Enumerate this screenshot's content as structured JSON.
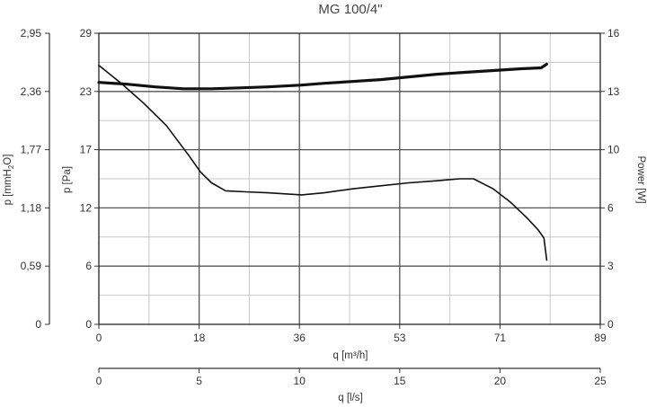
{
  "chart_data": {
    "type": "line",
    "title": "MG 100/4\"",
    "grid": true,
    "x_axis": {
      "label": "q [m³/h]",
      "range": [
        0,
        89
      ],
      "ticks": [
        "0",
        "18",
        "36",
        "53",
        "71",
        "89"
      ]
    },
    "x2_axis": {
      "label": "q [l/s]",
      "range": [
        0,
        25
      ],
      "ticks": [
        "0",
        "5",
        "10",
        "15",
        "20",
        "25"
      ]
    },
    "y_axis_pa": {
      "label": "p [Pa]",
      "range": [
        0,
        29
      ],
      "ticks": [
        "0",
        "6",
        "12",
        "17",
        "23",
        "29"
      ]
    },
    "y_axis_mmh2o": {
      "label_main": "p [mmH",
      "label_sub": "2",
      "label_end": "O]",
      "ticks": [
        "0",
        "0,59",
        "1,18",
        "1,77",
        "2,36",
        "2,95"
      ]
    },
    "y_axis_power": {
      "label": "Power [W]",
      "range": [
        0,
        16
      ],
      "ticks": [
        "0",
        "3",
        "6",
        "10",
        "13",
        "16"
      ]
    },
    "series": [
      {
        "color": "#111111",
        "axis": "power",
        "x": [
          0,
          5,
          10,
          15,
          20,
          25,
          30,
          36,
          40,
          45,
          50,
          55,
          60,
          65,
          70,
          75,
          78.5,
          79.5
        ],
        "y": [
          13.3,
          13.2,
          13.05,
          12.95,
          12.95,
          13.0,
          13.05,
          13.15,
          13.25,
          13.35,
          13.45,
          13.6,
          13.75,
          13.85,
          13.95,
          14.05,
          14.1,
          14.3
        ]
      },
      {
        "color": "#111111",
        "axis": "pa",
        "x": [
          0,
          4,
          8,
          12,
          16,
          18,
          20,
          22.5,
          26,
          30,
          36,
          40,
          45,
          50,
          55,
          60,
          64,
          66.5,
          70,
          73,
          76,
          78,
          79,
          79.5
        ],
        "y": [
          25.8,
          24.0,
          22.0,
          19.8,
          16.8,
          15.2,
          14.1,
          13.3,
          13.2,
          13.1,
          12.9,
          13.1,
          13.5,
          13.8,
          14.1,
          14.3,
          14.5,
          14.5,
          13.5,
          12.2,
          10.6,
          9.4,
          8.6,
          6.4
        ]
      }
    ]
  }
}
